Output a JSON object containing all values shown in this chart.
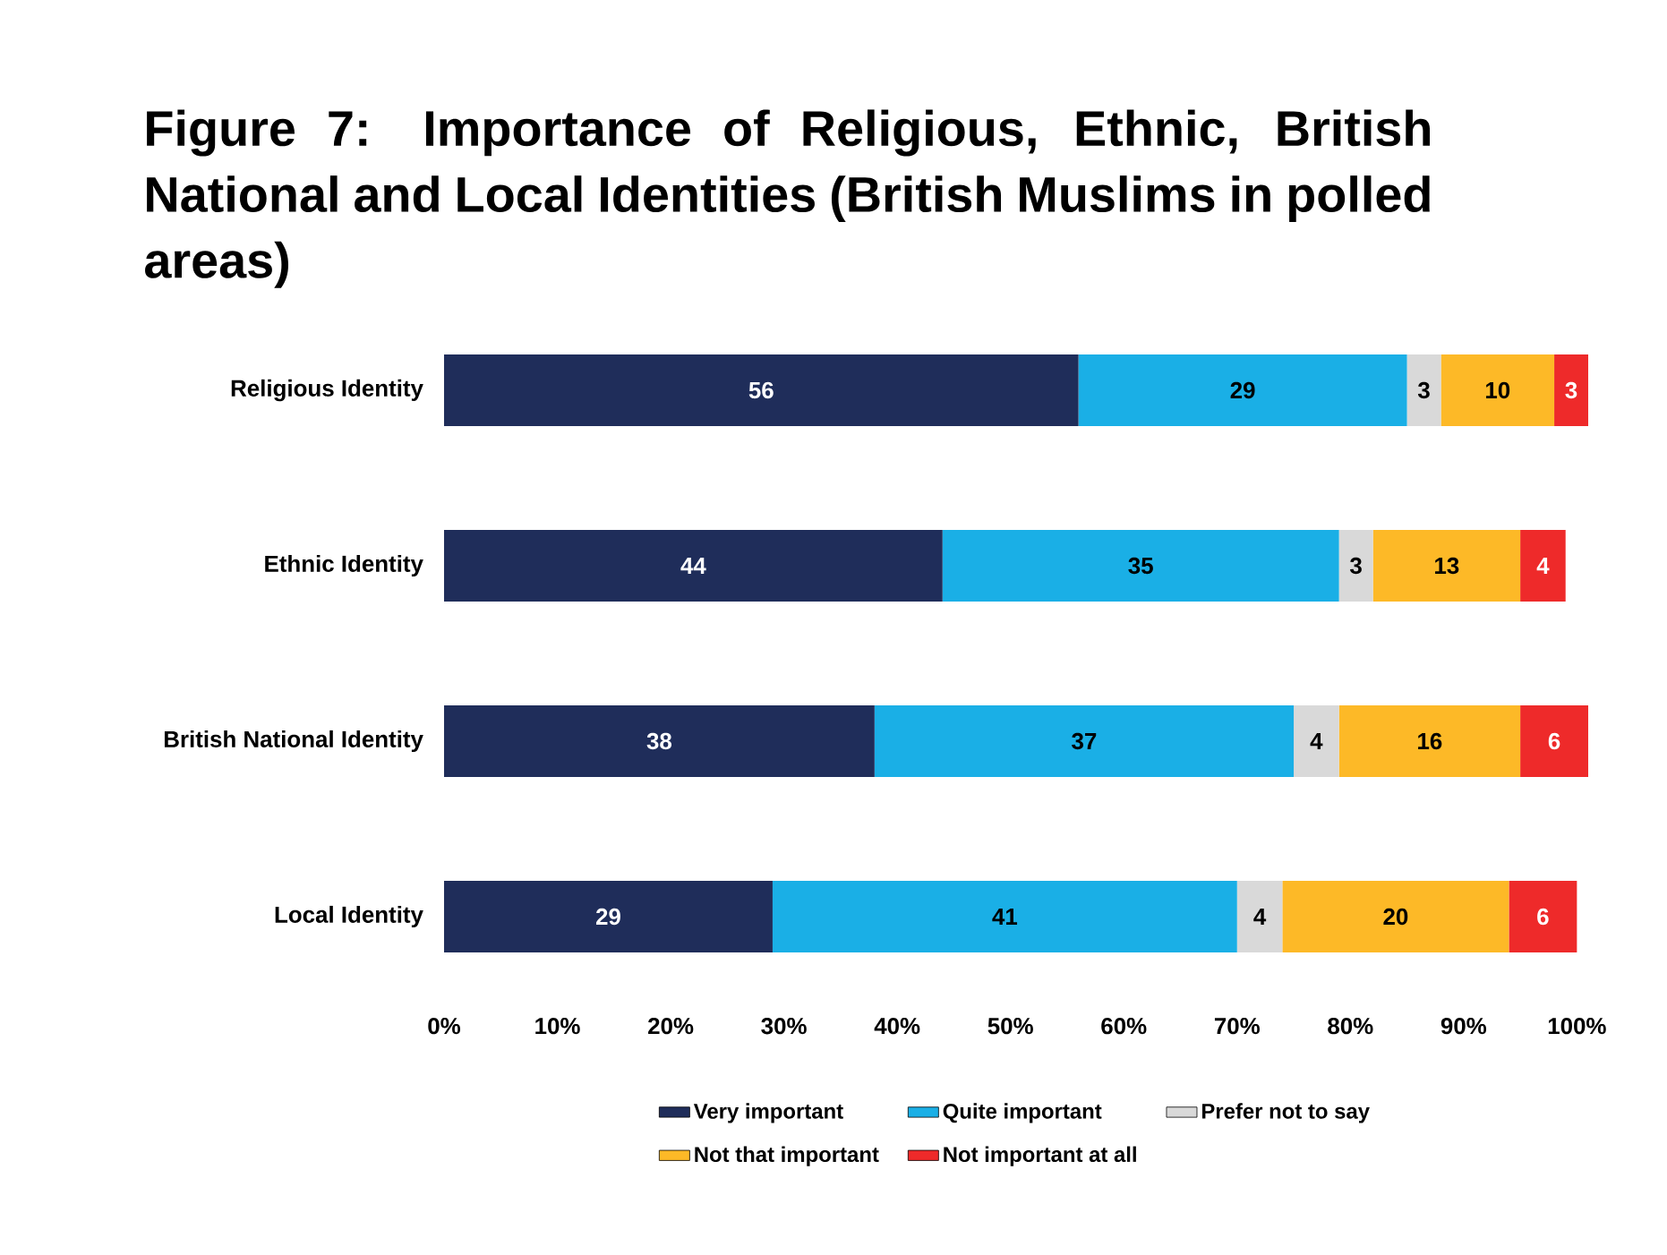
{
  "chart_data": {
    "type": "bar",
    "orientation": "horizontal",
    "stacked": true,
    "title": "Figure 7: Importance of Religious, Ethnic, British National and Local Identities (British Muslims in polled areas)",
    "categories": [
      "Religious Identity",
      "Ethnic Identity",
      "British National Identity",
      "Local Identity"
    ],
    "series": [
      {
        "name": "Very important",
        "color": "#1f2d5a",
        "values": [
          56,
          44,
          38,
          29
        ]
      },
      {
        "name": "Quite important",
        "color": "#1aafe6",
        "values": [
          29,
          35,
          37,
          41
        ]
      },
      {
        "name": "Prefer not to say",
        "color": "#d9d9d9",
        "values": [
          3,
          3,
          4,
          4
        ]
      },
      {
        "name": "Not that important",
        "color": "#fdb927",
        "values": [
          10,
          13,
          16,
          20
        ]
      },
      {
        "name": "Not important at all",
        "color": "#ee2a2a",
        "values": [
          3,
          4,
          6,
          6
        ]
      }
    ],
    "xlim": [
      0,
      101
    ],
    "xticks": [
      {
        "value": 0,
        "label": "0%"
      },
      {
        "value": 10,
        "label": "10%"
      },
      {
        "value": 20,
        "label": "20%"
      },
      {
        "value": 30,
        "label": "30%"
      },
      {
        "value": 40,
        "label": "40%"
      },
      {
        "value": 50,
        "label": "50%"
      },
      {
        "value": 60,
        "label": "60%"
      },
      {
        "value": 70,
        "label": "70%"
      },
      {
        "value": 80,
        "label": "80%"
      },
      {
        "value": 90,
        "label": "90%"
      },
      {
        "value": 100,
        "label": "100%"
      }
    ],
    "data_labels": true,
    "legend": "bottom",
    "grid": false
  }
}
